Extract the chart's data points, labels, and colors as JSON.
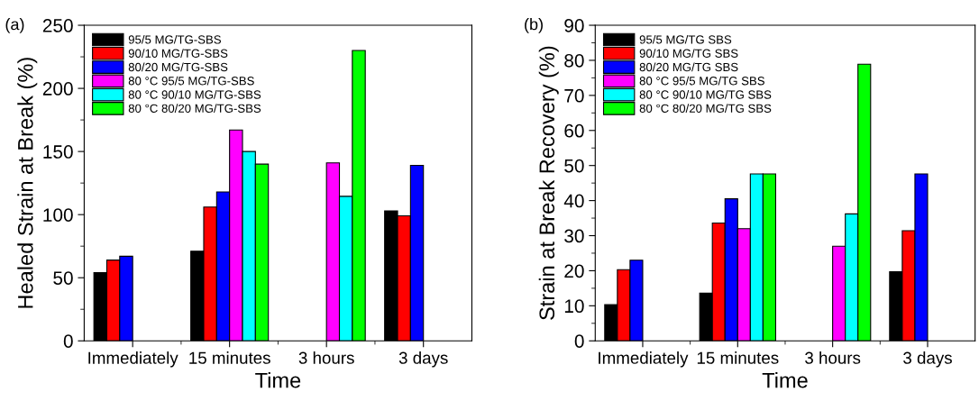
{
  "chart_data": [
    {
      "type": "bar",
      "annotations": [
        "(a)"
      ],
      "xlabel": "Time",
      "ylabel": "Healed Strain at Break (%)",
      "categories": [
        "Immediately",
        "15 minutes",
        "3 hours",
        "3 days"
      ],
      "ylim": [
        0,
        250
      ],
      "yticks": [
        0,
        50,
        100,
        150,
        200,
        250
      ],
      "legend": "top left",
      "grid": false,
      "series": [
        {
          "name": "95/5 MG/TG-SBS",
          "color": "#000000",
          "values": [
            54,
            71,
            null,
            103
          ]
        },
        {
          "name": "90/10 MG/TG-SBS",
          "color": "#ff0000",
          "values": [
            64,
            106,
            null,
            99
          ]
        },
        {
          "name": "80/20 MG/TG-SBS",
          "color": "#0000ff",
          "values": [
            67,
            118,
            null,
            139
          ]
        },
        {
          "name": "80 °C 95/5 MG/TG-SBS",
          "color": "#ff00ff",
          "values": [
            null,
            167,
            141,
            null
          ]
        },
        {
          "name": "80 °C 90/10 MG/TG-SBS",
          "color": "#00ffff",
          "values": [
            null,
            150,
            114.5,
            null
          ]
        },
        {
          "name": "80 °C 80/20 MG/TG-SBS",
          "color": "#00ff00",
          "values": [
            null,
            140,
            230,
            null
          ]
        }
      ]
    },
    {
      "type": "bar",
      "annotations": [
        "(b)"
      ],
      "xlabel": "Time",
      "ylabel": "Strain at Break Recovery (%)",
      "categories": [
        "Immediately",
        "15 minutes",
        "3 hours",
        "3 days"
      ],
      "ylim": [
        0,
        90
      ],
      "yticks": [
        0,
        10,
        20,
        30,
        40,
        50,
        60,
        70,
        80,
        90
      ],
      "legend": "top left",
      "grid": false,
      "series": [
        {
          "name": "95/5 MG/TG SBS",
          "color": "#000000",
          "values": [
            10.3,
            13.6,
            null,
            19.7
          ]
        },
        {
          "name": "90/10 MG/TG SBS",
          "color": "#ff0000",
          "values": [
            20.3,
            33.6,
            null,
            31.4
          ]
        },
        {
          "name": "80/20 MG/TG SBS",
          "color": "#0000ff",
          "values": [
            23,
            40.5,
            null,
            47.6
          ]
        },
        {
          "name": "80 °C 95/5 MG/TG SBS",
          "color": "#ff00ff",
          "values": [
            null,
            32,
            27,
            null
          ]
        },
        {
          "name": "80 °C 90/10 MG/TG SBS",
          "color": "#00ffff",
          "values": [
            null,
            47.6,
            36.2,
            null
          ]
        },
        {
          "name": "80 °C 80/20 MG/TG SBS",
          "color": "#00ff00",
          "values": [
            null,
            47.6,
            78.9,
            null
          ]
        }
      ]
    }
  ]
}
